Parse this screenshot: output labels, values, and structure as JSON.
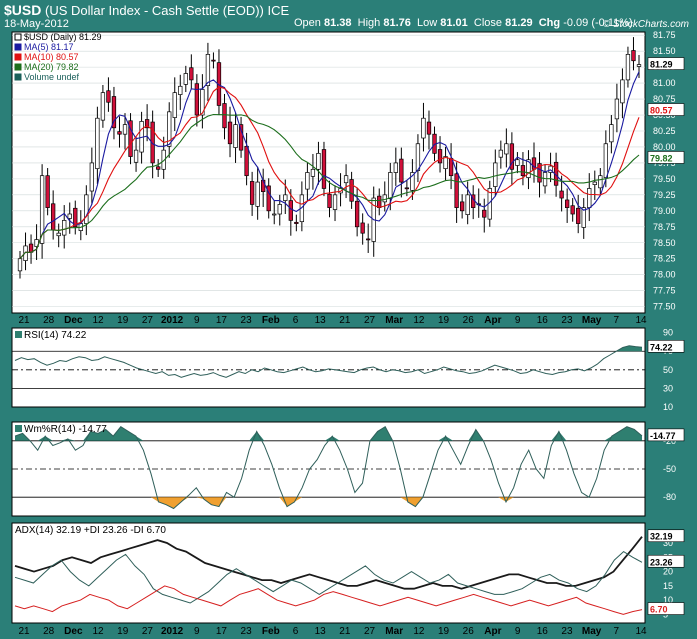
{
  "header": {
    "symbol": "$USD",
    "name": "(US Dollar Index - Cash Settle (EOD)) ICE",
    "date": "18-May-2012",
    "watermark": "© StockCharts.com",
    "open_label": "Open",
    "open": "81.38",
    "high_label": "High",
    "high": "81.76",
    "low_label": "Low",
    "low": "81.01",
    "close_label": "Close",
    "close": "81.29",
    "chg_label": "Chg",
    "chg": "-0.09 (-0.11%)"
  },
  "chart_data": [
    {
      "type": "candlestick",
      "legend": [
        "$USD (Daily) 81.29",
        "MA(5) 81.17",
        "MA(10) 80.57",
        "MA(20) 79.82",
        "Volume undef"
      ],
      "ylim": [
        77.4,
        81.8
      ],
      "y_ticks": [
        77.5,
        77.75,
        78.0,
        78.25,
        78.5,
        78.75,
        79.0,
        79.25,
        79.5,
        79.75,
        80.0,
        80.25,
        80.5,
        80.75,
        81.0,
        81.25,
        81.5,
        81.75
      ],
      "y_tick_labels": [
        "77.50",
        "77.75",
        "78.00",
        "78.25",
        "78.50",
        "78.75",
        "79.00",
        "79.25",
        "79.50",
        "79.75",
        "80.00",
        "80.25",
        "80.50",
        "80.75",
        "81.00",
        "81.25",
        "81.50",
        "81.75"
      ],
      "closes": [
        78.25,
        78.45,
        78.35,
        78.55,
        79.55,
        79.05,
        78.7,
        78.65,
        78.85,
        78.95,
        78.75,
        78.8,
        79.25,
        79.75,
        80.45,
        80.85,
        80.7,
        80.3,
        80.2,
        80.35,
        79.85,
        79.95,
        80.4,
        80.3,
        79.75,
        79.65,
        79.95,
        80.55,
        80.85,
        80.95,
        81.15,
        81.05,
        80.5,
        80.9,
        81.45,
        81.35,
        80.65,
        80.3,
        80.05,
        80.35,
        79.95,
        79.55,
        79.1,
        79.45,
        79.3,
        79.0,
        78.95,
        79.1,
        79.25,
        78.85,
        78.8,
        79.25,
        79.6,
        79.65,
        79.9,
        79.35,
        79.05,
        79.25,
        79.35,
        79.55,
        79.15,
        78.75,
        78.65,
        78.55,
        79.2,
        79.05,
        79.25,
        79.6,
        79.75,
        79.45,
        79.35,
        79.6,
        80.05,
        80.45,
        80.2,
        79.9,
        79.75,
        79.85,
        79.55,
        79.05,
        79.0,
        79.25,
        79.05,
        79.1,
        78.9,
        79.35,
        79.75,
        79.95,
        80.05,
        79.65,
        79.8,
        79.55,
        79.8,
        79.65,
        79.45,
        79.6,
        79.7,
        79.4,
        79.2,
        79.05,
        78.95,
        78.8,
        79.05,
        79.35,
        79.45,
        79.55,
        80.05,
        80.35,
        80.75,
        81.05,
        81.45,
        81.35,
        81.29
      ],
      "ma5_last": "81.17",
      "ma10_last": "80.57",
      "ma20_last": "79.82",
      "price_label": "81.29"
    },
    {
      "type": "line",
      "name": "RSI(14) 74.22",
      "ylim": [
        10,
        95
      ],
      "y_ticks": [
        10,
        30,
        50,
        70,
        90
      ],
      "y_tick_labels": [
        "10",
        "30",
        "50",
        "70",
        "90"
      ],
      "last_label": "74.22",
      "values": [
        60,
        63,
        61,
        62,
        58,
        55,
        57,
        60,
        59,
        62,
        64,
        63,
        60,
        61,
        64,
        62,
        60,
        58,
        55,
        52,
        50,
        48,
        46,
        48,
        44,
        45,
        42,
        44,
        46,
        44,
        45,
        47,
        44,
        42,
        45,
        48,
        46,
        50,
        48,
        52,
        50,
        48,
        47,
        49,
        51,
        53,
        50,
        48,
        49,
        51,
        50,
        49,
        48,
        47,
        50,
        52,
        53,
        50,
        48,
        50,
        49,
        47,
        48,
        50,
        46,
        48,
        50,
        53,
        51,
        49,
        48,
        46,
        47,
        49,
        52,
        55,
        53,
        51,
        49,
        46,
        47,
        50,
        48,
        46,
        45,
        47,
        48,
        50,
        51,
        49,
        52,
        56,
        62,
        66,
        70,
        74,
        76,
        75,
        74.22
      ]
    },
    {
      "type": "line",
      "name": "Wm%R(14) -14.77",
      "ylim": [
        -100,
        0
      ],
      "y_ticks": [
        -80,
        -50,
        -20
      ],
      "y_tick_labels": [
        "-80",
        "-50",
        "-20"
      ],
      "last_label": "-14.77",
      "values": [
        -15,
        -12,
        -20,
        -30,
        -15,
        -25,
        -22,
        -18,
        -30,
        -25,
        -10,
        -12,
        -8,
        -15,
        -5,
        -10,
        -15,
        -30,
        -55,
        -85,
        -88,
        -92,
        -85,
        -78,
        -70,
        -82,
        -88,
        -90,
        -75,
        -80,
        -60,
        -30,
        -10,
        -25,
        -45,
        -70,
        -90,
        -85,
        -70,
        -50,
        -40,
        -25,
        -15,
        -30,
        -50,
        -75,
        -65,
        -20,
        -10,
        -5,
        -20,
        -50,
        -85,
        -90,
        -80,
        -55,
        -30,
        -15,
        -30,
        -45,
        -25,
        -8,
        -20,
        -40,
        -65,
        -85,
        -70,
        -45,
        -30,
        -50,
        -60,
        -25,
        -10,
        -30,
        -55,
        -75,
        -80,
        -60,
        -30,
        -15,
        -10,
        -5,
        -8,
        -14.77
      ]
    },
    {
      "type": "line",
      "name": "ADX(14) 32.19 +DI 23.26 -DI 6.70",
      "ylim": [
        2,
        37
      ],
      "y_ticks": [
        5,
        10,
        15,
        20,
        25,
        30
      ],
      "y_tick_labels": [
        "5",
        "10",
        "15",
        "20",
        "25",
        "30"
      ],
      "series": [
        {
          "name": "ADX(14) 32.19",
          "last_label": "32.19",
          "color": "#1a1a1a",
          "values": [
            22,
            21,
            20,
            21,
            22,
            24,
            25,
            24,
            23,
            25,
            26,
            27,
            28,
            29,
            30,
            31,
            30,
            28,
            27,
            25,
            23,
            22,
            21,
            20,
            19,
            18,
            17,
            17,
            16,
            17,
            18,
            19,
            18,
            17,
            16,
            15,
            15,
            16,
            17,
            16,
            15,
            14,
            14,
            15,
            16,
            15,
            15,
            14,
            15,
            16,
            17,
            18,
            19,
            19,
            18,
            17,
            16,
            16,
            15,
            15,
            16,
            17,
            18,
            20,
            24,
            28,
            32.19
          ]
        },
        {
          "name": "+DI 23.26",
          "last_label": "23.26",
          "color": "#2f5f5a",
          "values": [
            18,
            17,
            16,
            19,
            22,
            24,
            20,
            17,
            15,
            18,
            21,
            24,
            26,
            22,
            19,
            14,
            12,
            11,
            10,
            9,
            11,
            13,
            16,
            19,
            21,
            19,
            17,
            15,
            13,
            15,
            17,
            16,
            14,
            12,
            14,
            16,
            18,
            20,
            22,
            19,
            17,
            16,
            18,
            20,
            18,
            16,
            17,
            19,
            16,
            15,
            14,
            13,
            12,
            12,
            13,
            14,
            16,
            18,
            19,
            17,
            16,
            14,
            13,
            15,
            19,
            24,
            27,
            25,
            23.26
          ]
        },
        {
          "name": "-DI 6.70",
          "last_label": "6.70",
          "color": "#d62020",
          "values": [
            8,
            7,
            8,
            7,
            6,
            8,
            9,
            10,
            12,
            11,
            10,
            8,
            7,
            9,
            11,
            13,
            15,
            14,
            12,
            11,
            10,
            9,
            8,
            10,
            12,
            13,
            14,
            12,
            10,
            9,
            8,
            9,
            10,
            12,
            13,
            12,
            11,
            10,
            9,
            8,
            9,
            10,
            11,
            10,
            9,
            8,
            9,
            10,
            11,
            12,
            11,
            10,
            9,
            8,
            9,
            10,
            9,
            8,
            9,
            10,
            11,
            9,
            8,
            7,
            6,
            5,
            6,
            6.7
          ]
        }
      ]
    }
  ],
  "x_axis": {
    "labels": [
      "21",
      "28",
      "Dec",
      "12",
      "19",
      "27",
      "2012",
      "9",
      "17",
      "23",
      "Feb",
      "6",
      "13",
      "21",
      "27",
      "Mar",
      "12",
      "19",
      "26",
      "Apr",
      "9",
      "16",
      "23",
      "May",
      "7",
      "14"
    ],
    "bold": [
      "Dec",
      "2012",
      "Feb",
      "Mar",
      "Apr",
      "May"
    ]
  }
}
